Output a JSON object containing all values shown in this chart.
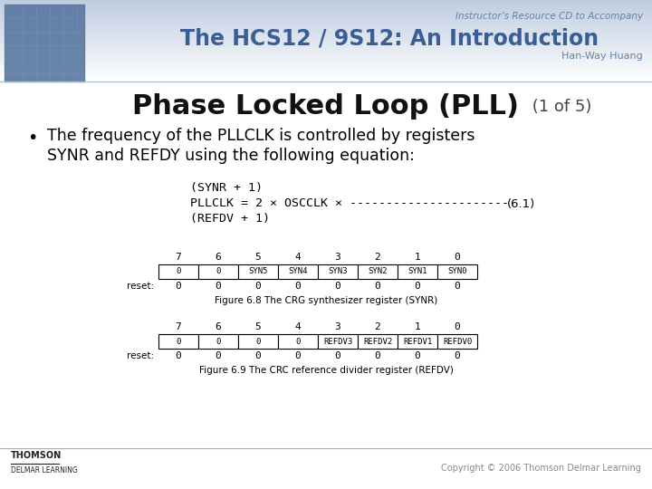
{
  "slide_title_main": "Phase Locked Loop (PLL)",
  "slide_title_suffix": " (1 of 5)",
  "header_line1": "Instructor’s Resource CD to Accompany",
  "header_line2": "The HCS12 / 9S12: An Introduction",
  "header_line3": "Han-Way Huang",
  "bullet_text1": "The frequency of the PLLCLK is controlled by registers",
  "bullet_text2": "SYNR and REFDY using the following equation:",
  "eq_line1": "(SYNR + 1)",
  "eq_line2": "PLLCLK = 2 × OSCCLK × ----------------------",
  "eq_label": "(6.1)",
  "eq_line3": "(REFDV + 1)",
  "synr_cols": [
    "7",
    "6",
    "5",
    "4",
    "3",
    "2",
    "1",
    "0"
  ],
  "synr_row1": [
    "0",
    "0",
    "SYN5",
    "SYN4",
    "SYN3",
    "SYN2",
    "SYN1",
    "SYN0"
  ],
  "synr_reset": [
    "0",
    "0",
    "0",
    "0",
    "0",
    "0",
    "0",
    "0"
  ],
  "synr_caption": "Figure 6.8 The CRG synthesizer register (SYNR)",
  "refdv_cols": [
    "7",
    "6",
    "5",
    "4",
    "3",
    "2",
    "1",
    "0"
  ],
  "refdv_row1": [
    "0",
    "0",
    "0",
    "0",
    "REFDV3",
    "REFDV2",
    "REFDV1",
    "REFDV0"
  ],
  "refdv_reset": [
    "0",
    "0",
    "0",
    "0",
    "0",
    "0",
    "0",
    "0"
  ],
  "refdv_caption": "Figure 6.9 The CRC reference divider register (REFDV)",
  "footer_left1": "THOMSON",
  "footer_left2": "DELMAR LEARNING",
  "footer_right": "Copyright © 2006 Thomson Delmar Learning",
  "header_bg_color": "#c0d0e4",
  "header_title_color": "#3a5f96",
  "header_subtitle_color": "#6680a8",
  "title_color": "#111111",
  "text_color": "#111111",
  "eq_color": "#111111",
  "footer_color": "#333333",
  "copyright_color": "#888888"
}
